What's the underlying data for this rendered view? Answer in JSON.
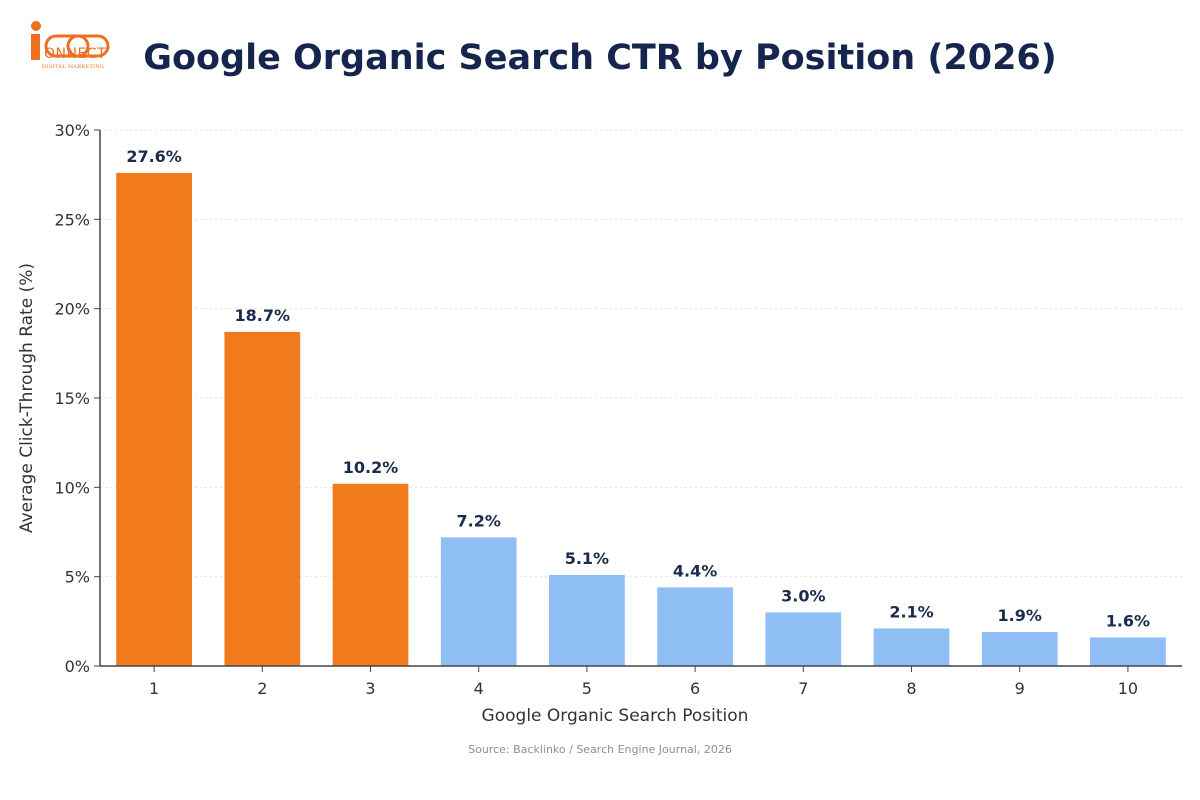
{
  "logo": {
    "brand": "ONNECT",
    "tagline": "DIGITAL MARKETING"
  },
  "source_note": "Source: Backlinko / Search Engine Journal, 2026",
  "colors": {
    "highlight": "#f07a1c",
    "normal": "#8fbef5",
    "title": "#15254d",
    "axis_text": "#333333"
  },
  "chart_data": {
    "type": "bar",
    "title": "Google Organic Search CTR by Position (2026)",
    "xlabel": "Google Organic Search Position",
    "ylabel": "Average Click-Through Rate (%)",
    "categories": [
      "1",
      "2",
      "3",
      "4",
      "5",
      "6",
      "7",
      "8",
      "9",
      "10"
    ],
    "values": [
      27.6,
      18.7,
      10.2,
      7.2,
      5.1,
      4.4,
      3.0,
      2.1,
      1.9,
      1.6
    ],
    "data_labels": [
      "27.6%",
      "18.7%",
      "10.2%",
      "7.2%",
      "5.1%",
      "4.4%",
      "3.0%",
      "2.1%",
      "1.9%",
      "1.6%"
    ],
    "highlighted_categories": [
      "1",
      "2",
      "3"
    ],
    "ylim": [
      0,
      30
    ],
    "yticks": [
      0,
      5,
      10,
      15,
      20,
      25,
      30
    ],
    "ytick_labels": [
      "0%",
      "5%",
      "10%",
      "15%",
      "20%",
      "25%",
      "30%"
    ],
    "grid": true,
    "legend": "none"
  }
}
